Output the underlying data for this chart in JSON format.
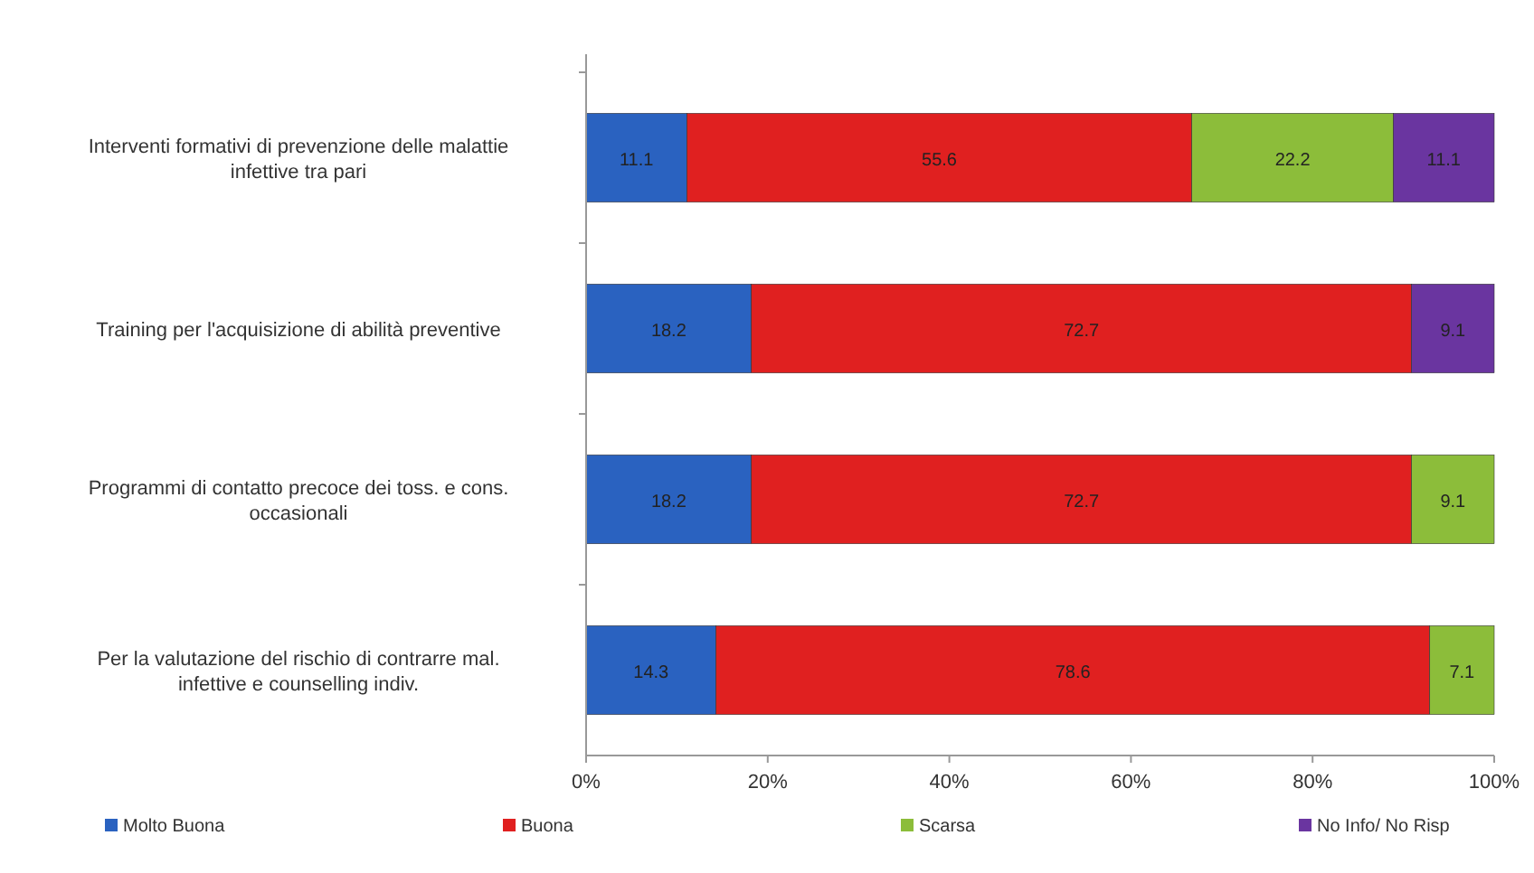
{
  "chart_data": {
    "type": "bar",
    "orientation": "horizontal",
    "stacked": true,
    "data_labels": true,
    "legend": "bottom",
    "grid": false,
    "categories": [
      "Interventi formativi di prevenzione delle malattie infettive tra pari",
      "Training per l'acquisizione di abilità preventive",
      "Programmi di contatto precoce dei toss. e cons. occasionali",
      "Per la valutazione del rischio di contrarre mal. infettive e counselling indiv."
    ],
    "series": [
      {
        "name": "Molto Buona",
        "color": "#2a62c0",
        "values": [
          11.1,
          18.2,
          18.2,
          14.3
        ]
      },
      {
        "name": "Buona",
        "color": "#e02020",
        "values": [
          55.6,
          72.7,
          72.7,
          78.6
        ]
      },
      {
        "name": "Scarsa",
        "color": "#8cbd3a",
        "values": [
          22.2,
          null,
          9.1,
          7.1
        ]
      },
      {
        "name": "No Info/ No Risp",
        "color": "#6a35a0",
        "values": [
          11.1,
          9.1,
          null,
          null
        ]
      }
    ],
    "xlim": [
      0,
      100
    ],
    "xticks": [
      {
        "value": 0,
        "label": "0%"
      },
      {
        "value": 20,
        "label": "20%"
      },
      {
        "value": 40,
        "label": "40%"
      },
      {
        "value": 60,
        "label": "60%"
      },
      {
        "value": 80,
        "label": "80%"
      },
      {
        "value": 100,
        "label": "100%"
      }
    ]
  }
}
